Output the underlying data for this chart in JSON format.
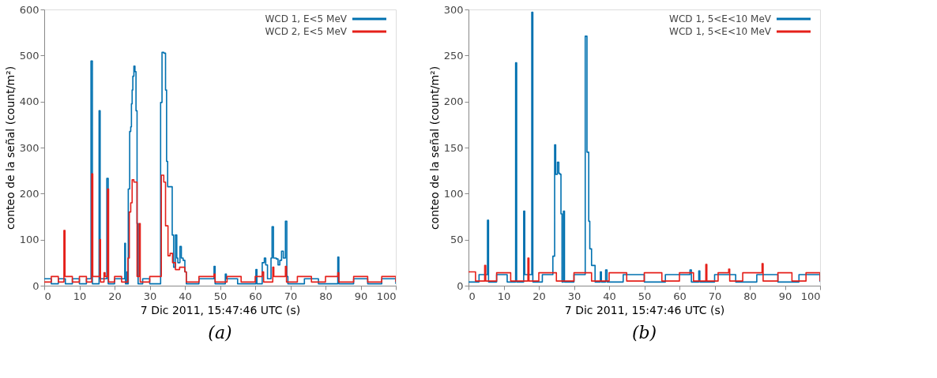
{
  "chart_data": [
    {
      "type": "step",
      "xlabel": "7 Dic 2011, 15:47:46 UTC (s)",
      "ylabel": "conteo de la señal (count/m²)",
      "annotations": [
        "(a)"
      ],
      "xlim": [
        0,
        100
      ],
      "xticks": [
        0,
        10,
        20,
        30,
        40,
        50,
        60,
        70,
        80,
        90,
        100
      ],
      "ylim": [
        0,
        600
      ],
      "yticks": [
        0,
        100,
        200,
        300,
        400,
        500,
        600
      ],
      "grid": false,
      "legend": "top right",
      "series": [
        {
          "name": "WCD 1, E<5 MeV",
          "color": "#0071b0",
          "x": [
            0,
            2,
            4,
            6,
            8,
            10,
            12,
            13.3,
            13.7,
            15.6,
            15.9,
            17.8,
            18.2,
            20,
            22.9,
            23.1,
            23.5,
            23.7,
            23.9,
            24.3,
            24.6,
            24.8,
            25.0,
            25.2,
            25.5,
            25.8,
            26.1,
            26.4,
            26.7,
            28,
            30,
            33.1,
            33.5,
            34.0,
            34.5,
            34.8,
            35.1,
            36.4,
            36.8,
            37.3,
            37.7,
            38.0,
            38.6,
            39.0,
            39.5,
            40.0,
            40.4,
            44,
            48.3,
            48.6,
            51.5,
            51.8,
            55,
            60.2,
            60.5,
            62.0,
            62.6,
            63.0,
            63.5,
            64.5,
            64.8,
            65.2,
            66.0,
            66.5,
            67.0,
            67.5,
            68.0,
            68.6,
            69.0,
            69.3,
            74,
            78,
            83.5,
            83.8,
            88,
            92,
            96,
            100
          ],
          "values": [
            15,
            4,
            15,
            4,
            15,
            4,
            15,
            488,
            4,
            380,
            15,
            233,
            4,
            15,
            92,
            4,
            30,
            4,
            210,
            335,
            345,
            395,
            425,
            455,
            477,
            465,
            380,
            135,
            4,
            15,
            4,
            398,
            507,
            505,
            425,
            270,
            215,
            110,
            40,
            110,
            60,
            50,
            85,
            60,
            55,
            30,
            4,
            15,
            42,
            4,
            25,
            15,
            4,
            35,
            4,
            50,
            60,
            45,
            15,
            60,
            128,
            60,
            58,
            45,
            55,
            75,
            60,
            140,
            20,
            4,
            15,
            4,
            62,
            4,
            15,
            4,
            15,
            4
          ]
        },
        {
          "name": "WCD 2, E<5 MeV",
          "color": "#e5201a",
          "x": [
            0,
            2,
            4,
            5.6,
            5.9,
            8,
            10,
            12,
            13.5,
            13.8,
            15.8,
            16.0,
            17.0,
            17.3,
            18.0,
            18.3,
            20,
            22,
            23.8,
            24.2,
            24.6,
            25.0,
            25.5,
            26.0,
            26.4,
            27.0,
            27.3,
            30,
            33.3,
            34.0,
            34.5,
            35.2,
            35.8,
            36.5,
            37.3,
            38.5,
            40.0,
            40.4,
            44,
            48.3,
            48.6,
            52,
            56,
            60,
            62.0,
            62.4,
            65.0,
            65.3,
            68.6,
            68.9,
            72,
            76,
            80,
            83.5,
            83.8,
            88,
            92,
            96,
            100
          ],
          "values": [
            8,
            20,
            8,
            120,
            20,
            8,
            20,
            8,
            243,
            20,
            100,
            8,
            28,
            20,
            210,
            8,
            20,
            8,
            60,
            160,
            180,
            230,
            225,
            225,
            20,
            135,
            8,
            20,
            240,
            225,
            130,
            65,
            70,
            50,
            35,
            40,
            30,
            8,
            20,
            25,
            8,
            20,
            8,
            20,
            30,
            8,
            40,
            20,
            42,
            8,
            20,
            8,
            20,
            28,
            8,
            20,
            8,
            20,
            8
          ]
        }
      ]
    },
    {
      "type": "step",
      "xlabel": "7 Dic 2011, 15:47:46 UTC (s)",
      "ylabel": "conteo de la señal (count/m²)",
      "annotations": [
        "(b)"
      ],
      "xlim": [
        0,
        100
      ],
      "xticks": [
        0,
        10,
        20,
        30,
        40,
        50,
        60,
        70,
        80,
        90,
        100
      ],
      "ylim": [
        0,
        300
      ],
      "yticks": [
        0,
        50,
        100,
        150,
        200,
        250,
        300
      ],
      "grid": false,
      "legend": "top right",
      "series": [
        {
          "name": "WCD 1, 5<E<10 MeV",
          "color": "#0071b0",
          "x": [
            0,
            3,
            5.4,
            5.7,
            8,
            11,
            13.4,
            13.7,
            15.7,
            16.0,
            18.0,
            18.3,
            21,
            24.0,
            24.5,
            24.8,
            25.3,
            25.7,
            26.0,
            26.3,
            26.6,
            27.0,
            27.3,
            30,
            33.2,
            33.7,
            34.2,
            34.5,
            35.0,
            36.0,
            37.5,
            37.8,
            39.0,
            39.4,
            44,
            50,
            56,
            63.0,
            63.4,
            65.5,
            65.8,
            70,
            76,
            82,
            88,
            94,
            100
          ],
          "values": [
            4,
            12,
            71,
            4,
            12,
            4,
            242,
            4,
            81,
            12,
            297,
            4,
            12,
            32,
            153,
            121,
            134,
            122,
            121,
            78,
            4,
            81,
            4,
            12,
            271,
            145,
            70,
            40,
            22,
            4,
            15,
            4,
            17,
            4,
            12,
            4,
            12,
            17,
            4,
            16,
            4,
            12,
            4,
            12,
            4,
            12,
            4
          ]
        },
        {
          "name": "WCD 1, 5<E<10 MeV",
          "color": "#e5201a",
          "x": [
            0,
            2,
            4.6,
            4.9,
            8,
            12,
            16.9,
            17.2,
            20,
            25,
            30,
            35,
            40,
            45,
            50,
            55,
            60,
            64,
            67.5,
            67.8,
            71,
            74,
            74.3,
            78,
            83.5,
            83.8,
            88,
            92,
            96,
            100
          ],
          "values": [
            15,
            5,
            22,
            5,
            14,
            5,
            30,
            5,
            14,
            5,
            14,
            5,
            14,
            5,
            14,
            5,
            14,
            5,
            23,
            5,
            14,
            18,
            5,
            14,
            24,
            5,
            14,
            5,
            14,
            5
          ]
        }
      ]
    }
  ]
}
